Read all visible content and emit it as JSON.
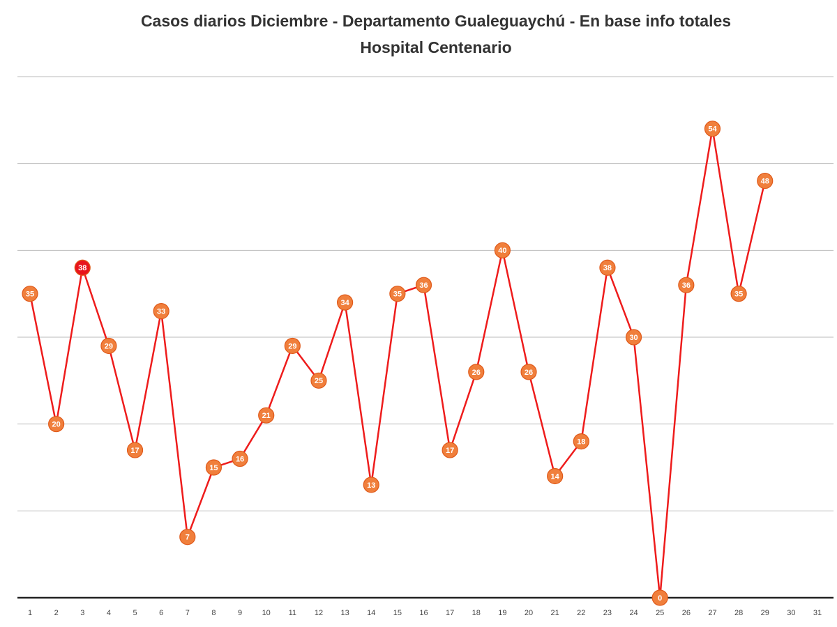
{
  "chart_data": {
    "type": "line",
    "title": [
      "Casos diarios Diciembre  - Departamento Gualeguaychú - En base info totales",
      "Hospital  Centenario"
    ],
    "categories": [
      "1",
      "2",
      "3",
      "4",
      "5",
      "6",
      "7",
      "8",
      "9",
      "10",
      "11",
      "12",
      "13",
      "14",
      "15",
      "16",
      "17",
      "18",
      "19",
      "20",
      "21",
      "22",
      "23",
      "24",
      "25",
      "26",
      "27",
      "28",
      "29",
      "30",
      "31"
    ],
    "series": [
      {
        "name": "Casos diarios",
        "color": "#ee1c1c",
        "values": [
          35,
          20,
          38,
          29,
          17,
          33,
          7,
          15,
          16,
          21,
          29,
          25,
          34,
          13,
          35,
          36,
          17,
          26,
          40,
          26,
          14,
          18,
          38,
          30,
          0,
          36,
          54,
          35,
          48,
          null,
          null
        ],
        "point_colors": [
          "#f07f3c",
          "#f07f3c",
          "#e8141c",
          "#f07f3c",
          "#f07f3c",
          "#f07f3c",
          "#f07f3c",
          "#f07f3c",
          "#f07f3c",
          "#f07f3c",
          "#f07f3c",
          "#f07f3c",
          "#f07f3c",
          "#f07f3c",
          "#f07f3c",
          "#f07f3c",
          "#f07f3c",
          "#f07f3c",
          "#f07f3c",
          "#f07f3c",
          "#f07f3c",
          "#f07f3c",
          "#f07f3c",
          "#f07f3c",
          "#f07f3c",
          "#f07f3c",
          "#f07f3c",
          "#f07f3c",
          "#f07f3c",
          null,
          null
        ]
      }
    ],
    "ylim": [
      0,
      60
    ],
    "yticks": [
      0,
      10,
      20,
      30,
      40,
      50,
      60
    ],
    "grid": true
  }
}
